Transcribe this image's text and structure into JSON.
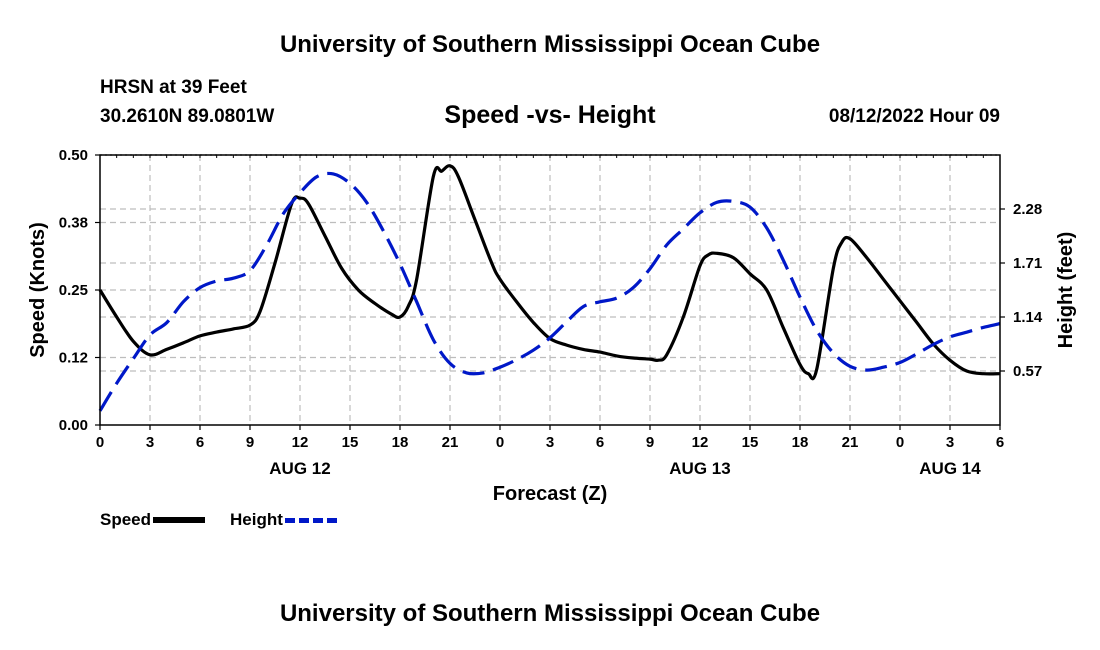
{
  "page_title": "University of Southern Mississippi Ocean Cube",
  "footer_title": "University of Southern Mississippi Ocean Cube",
  "station": "HRSN at 39 Feet",
  "coords": "30.2610N  89.0801W",
  "chart_subtitle": "Speed -vs- Height",
  "run_time": "08/12/2022 Hour 09",
  "legend": {
    "speed_label": "Speed",
    "height_label": "Height",
    "speed_color": "#000000",
    "height_color": "#0018c8"
  },
  "chart_data": {
    "type": "line",
    "xlabel": "Forecast (Z)",
    "ylabel_left": "Speed (Knots)",
    "ylabel_right": "Height (feet)",
    "x_range_hours": [
      0,
      54
    ],
    "x_tick_labels": [
      "0",
      "3",
      "6",
      "9",
      "12",
      "15",
      "18",
      "21",
      "0",
      "3",
      "6",
      "9",
      "12",
      "15",
      "18",
      "21",
      "0",
      "3",
      "6"
    ],
    "date_labels": [
      {
        "label": "AUG 12",
        "hour": 12
      },
      {
        "label": "AUG 13",
        "hour": 36
      },
      {
        "label": "AUG 14",
        "hour": 51
      }
    ],
    "left_axis": {
      "range": [
        0,
        0.5
      ],
      "tick_values": [
        0,
        0.125,
        0.25,
        0.375,
        0.5
      ],
      "tick_labels": [
        "0.00",
        "0.12",
        "0.25",
        "0.38",
        "0.50"
      ]
    },
    "right_axis": {
      "range": [
        0,
        2.85
      ],
      "tick_values": [
        0.57,
        1.14,
        1.71,
        2.28
      ],
      "tick_labels": [
        "0.57",
        "1.14",
        "1.71",
        "2.28"
      ]
    },
    "grid": true,
    "series": [
      {
        "name": "Speed",
        "axis": "left",
        "color": "#000000",
        "style": "solid",
        "x": [
          0,
          1,
          2,
          3,
          4,
          5,
          6,
          7,
          8,
          9,
          9.6,
          10.5,
          11.5,
          12,
          12.5,
          13.5,
          14.5,
          15.5,
          16.5,
          17.5,
          18,
          18.5,
          19,
          20,
          20.5,
          21,
          21.5,
          22.5,
          23.5,
          24,
          25,
          26,
          27,
          28,
          29,
          30,
          31,
          32,
          33,
          33.5,
          34,
          35,
          36,
          36.5,
          37,
          38,
          39,
          40,
          41,
          42,
          42.5,
          43,
          44,
          44.5,
          45,
          46,
          47,
          48,
          49,
          50,
          51,
          52,
          53,
          54
        ],
        "y": [
          0.25,
          0.2,
          0.155,
          0.13,
          0.14,
          0.152,
          0.165,
          0.172,
          0.178,
          0.185,
          0.21,
          0.3,
          0.41,
          0.42,
          0.41,
          0.35,
          0.29,
          0.25,
          0.225,
          0.205,
          0.2,
          0.22,
          0.27,
          0.46,
          0.47,
          0.48,
          0.46,
          0.38,
          0.3,
          0.27,
          0.228,
          0.19,
          0.16,
          0.148,
          0.14,
          0.135,
          0.128,
          0.124,
          0.122,
          0.12,
          0.13,
          0.2,
          0.295,
          0.315,
          0.318,
          0.31,
          0.28,
          0.25,
          0.18,
          0.112,
          0.095,
          0.103,
          0.29,
          0.338,
          0.345,
          0.31,
          0.27,
          0.23,
          0.19,
          0.15,
          0.12,
          0.1,
          0.095,
          0.095
        ]
      },
      {
        "name": "Height",
        "axis": "right",
        "color": "#0018c8",
        "style": "dashed",
        "x": [
          0,
          1,
          2,
          3,
          4,
          5,
          6,
          7,
          8,
          9,
          10,
          11,
          12,
          13,
          14,
          15,
          16,
          17,
          18,
          19,
          20,
          21,
          22,
          23,
          24,
          25,
          26,
          27,
          28,
          29,
          30,
          31,
          32,
          33,
          34,
          35,
          36,
          37,
          38,
          39,
          40,
          41,
          42,
          43,
          44,
          45,
          46,
          47,
          48,
          49,
          50,
          51,
          52,
          53,
          54
        ],
        "y": [
          0.15,
          0.44,
          0.7,
          0.95,
          1.08,
          1.3,
          1.45,
          1.52,
          1.55,
          1.63,
          1.9,
          2.23,
          2.45,
          2.62,
          2.65,
          2.55,
          2.35,
          2.05,
          1.7,
          1.3,
          0.9,
          0.65,
          0.55,
          0.55,
          0.61,
          0.69,
          0.79,
          0.92,
          1.09,
          1.25,
          1.3,
          1.34,
          1.45,
          1.65,
          1.9,
          2.07,
          2.24,
          2.35,
          2.36,
          2.3,
          2.08,
          1.74,
          1.35,
          1.0,
          0.76,
          0.62,
          0.58,
          0.61,
          0.66,
          0.75,
          0.85,
          0.93,
          0.98,
          1.03,
          1.07
        ]
      }
    ]
  }
}
